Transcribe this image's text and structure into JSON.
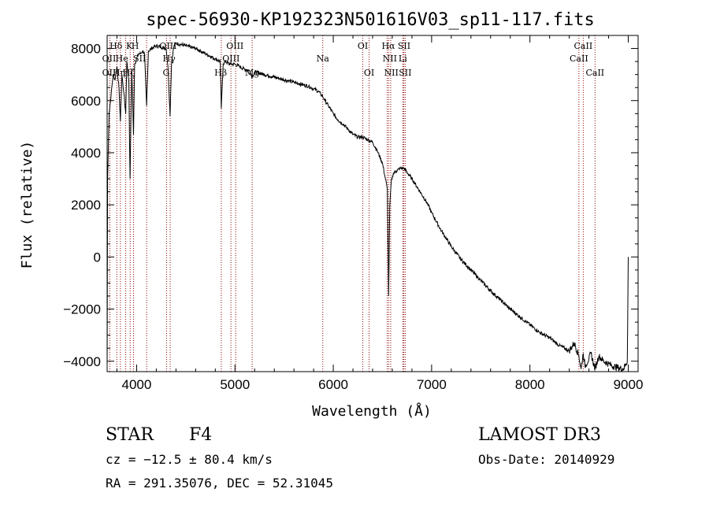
{
  "chart_data": {
    "type": "line",
    "title": "spec-56930-KP192323N501616V03_sp11-117.fits",
    "xlabel": "Wavelength (Å)",
    "ylabel": "Flux (relative)",
    "xlim": [
      3700,
      9100
    ],
    "ylim": [
      -4400,
      8500
    ],
    "x_ticks": [
      4000,
      5000,
      6000,
      7000,
      8000,
      9000
    ],
    "y_ticks": [
      -4000,
      -2000,
      0,
      2000,
      4000,
      6000,
      8000
    ],
    "x_tick_labels": [
      "4000",
      "5000",
      "6000",
      "7000",
      "8000",
      "9000"
    ],
    "y_tick_labels": [
      "−4000",
      "−2000",
      "0",
      "2000",
      "4000",
      "6000",
      "8000"
    ],
    "series": [
      {
        "name": "spectrum",
        "color": "#000000",
        "x": [
          3700,
          3705,
          3720,
          3740,
          3760,
          3780,
          3800,
          3820,
          3835,
          3850,
          3870,
          3889,
          3900,
          3920,
          3933,
          3950,
          3968,
          3980,
          4000,
          4020,
          4040,
          4060,
          4080,
          4101,
          4120,
          4150,
          4200,
          4250,
          4300,
          4320,
          4340,
          4355,
          4380,
          4400,
          4450,
          4500,
          4550,
          4600,
          4650,
          4700,
          4750,
          4800,
          4850,
          4861,
          4880,
          4900,
          4950,
          5000,
          5050,
          5100,
          5150,
          5175,
          5200,
          5250,
          5300,
          5350,
          5400,
          5450,
          5500,
          5550,
          5600,
          5650,
          5700,
          5750,
          5800,
          5850,
          5893,
          5910,
          5950,
          6000,
          6050,
          6100,
          6150,
          6200,
          6250,
          6300,
          6350,
          6400,
          6450,
          6500,
          6530,
          6550,
          6563,
          6575,
          6590,
          6610,
          6640,
          6680,
          6720,
          6760,
          6800,
          6850,
          6900,
          6950,
          7000,
          7100,
          7200,
          7300,
          7400,
          7500,
          7600,
          7700,
          7800,
          7900,
          8000,
          8100,
          8200,
          8300,
          8400,
          8450,
          8498,
          8520,
          8542,
          8560,
          8600,
          8620,
          8662,
          8700,
          8750,
          8800,
          8850,
          8900,
          8950,
          8990,
          9000
        ],
        "values": [
          -4300,
          3000,
          5500,
          6200,
          7000,
          6800,
          7300,
          6500,
          5200,
          7000,
          6300,
          5500,
          7500,
          6800,
          3000,
          7200,
          4700,
          7400,
          7600,
          7800,
          7800,
          7900,
          7800,
          5800,
          7900,
          8000,
          8100,
          8050,
          8000,
          7200,
          5400,
          7500,
          8100,
          8200,
          8150,
          8100,
          8050,
          8000,
          7900,
          7800,
          7700,
          7600,
          7500,
          5700,
          7400,
          7500,
          7400,
          7400,
          7300,
          7200,
          7150,
          6900,
          7100,
          7050,
          7000,
          6950,
          6900,
          6850,
          6800,
          6750,
          6700,
          6650,
          6600,
          6550,
          6450,
          6350,
          6150,
          6050,
          5800,
          5500,
          5250,
          5100,
          4900,
          4700,
          4600,
          4600,
          4500,
          4400,
          4050,
          3600,
          3000,
          2600,
          -1500,
          2000,
          2900,
          3200,
          3300,
          3400,
          3400,
          3200,
          3000,
          2700,
          2400,
          2100,
          1700,
          1000,
          400,
          -100,
          -500,
          -900,
          -1300,
          -1650,
          -2000,
          -2300,
          -2600,
          -2900,
          -3100,
          -3400,
          -3600,
          -3300,
          -3800,
          -4300,
          -3700,
          -4200,
          -3900,
          -3700,
          -4300,
          -3800,
          -4000,
          -4100,
          -4200,
          -4250,
          -4300,
          -4000,
          0
        ]
      }
    ],
    "reference_lines": {
      "color": "#8b0000",
      "wavelengths": [
        3727,
        3798,
        3835,
        3889,
        3934,
        3968,
        4102,
        4304,
        4341,
        4861,
        4959,
        5007,
        5175,
        5893,
        6300,
        6364,
        6548,
        6563,
        6584,
        6707,
        6717,
        6731,
        8498,
        8542,
        8662
      ]
    },
    "line_labels": [
      {
        "text": "Hδ",
        "wavelength": 3790,
        "row": 1
      },
      {
        "text": "K",
        "wavelength": 3925,
        "row": 1
      },
      {
        "text": "H",
        "wavelength": 3985,
        "row": 1
      },
      {
        "text": "OII",
        "wavelength": 3720,
        "row": 2
      },
      {
        "text": "He",
        "wavelength": 3850,
        "row": 2
      },
      {
        "text": "SII",
        "wavelength": 4030,
        "row": 2
      },
      {
        "text": "OII",
        "wavelength": 3720,
        "row": 3
      },
      {
        "text": "Hη",
        "wavelength": 3820,
        "row": 3
      },
      {
        "text": "Hζ",
        "wavelength": 3920,
        "row": 3
      },
      {
        "text": "OIII",
        "wavelength": 4320,
        "row": 1
      },
      {
        "text": "Hγ",
        "wavelength": 4330,
        "row": 2
      },
      {
        "text": "G",
        "wavelength": 4300,
        "row": 3
      },
      {
        "text": "OIII",
        "wavelength": 5000,
        "row": 1
      },
      {
        "text": "OIII",
        "wavelength": 4960,
        "row": 2
      },
      {
        "text": "Hβ",
        "wavelength": 4855,
        "row": 3
      },
      {
        "text": "Mg",
        "wavelength": 5175,
        "row": 3
      },
      {
        "text": "Na",
        "wavelength": 5893,
        "row": 2
      },
      {
        "text": "OI",
        "wavelength": 6300,
        "row": 1
      },
      {
        "text": "OI",
        "wavelength": 6364,
        "row": 3
      },
      {
        "text": "Hα",
        "wavelength": 6560,
        "row": 1
      },
      {
        "text": "SII",
        "wavelength": 6720,
        "row": 1
      },
      {
        "text": "NII",
        "wavelength": 6575,
        "row": 2
      },
      {
        "text": "Li",
        "wavelength": 6707,
        "row": 2
      },
      {
        "text": "NII",
        "wavelength": 6590,
        "row": 3
      },
      {
        "text": "SII",
        "wavelength": 6731,
        "row": 3
      },
      {
        "text": "CaII",
        "wavelength": 8542,
        "row": 1
      },
      {
        "text": "CaII",
        "wavelength": 8498,
        "row": 2
      },
      {
        "text": "CaII",
        "wavelength": 8662,
        "row": 3
      }
    ]
  },
  "info": {
    "class_label": "STAR",
    "subclass": "F4",
    "survey": "LAMOST DR3",
    "redshift": "cz = −12.5 ± 80.4 km/s",
    "obs_date": "Obs-Date: 20140929",
    "coords": "RA = 291.35076, DEC =  52.31045"
  }
}
